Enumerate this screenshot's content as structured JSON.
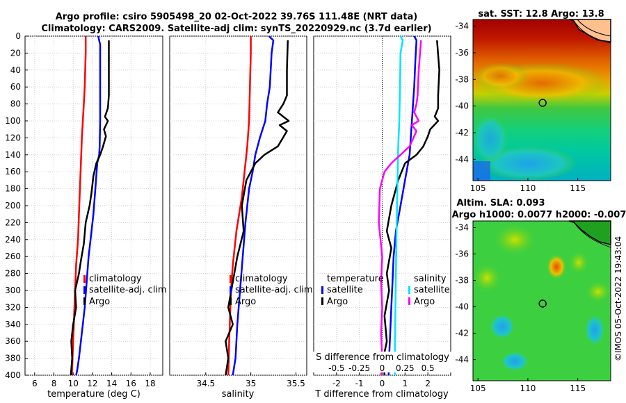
{
  "title_line1": "Argo profile: csiro 5905498_20 02-Oct-2022 39.76S 111.48E (NRT data)",
  "title_line2": "Climatology: CARS2009. Satellite-adj clim: synTS_20220929.nc (3.7d earlier)",
  "colors": {
    "climatology": "#ff0000",
    "satellite": "#0000ff",
    "argo": "#000000",
    "sat_salinity": "#00e5ff",
    "argo_salinity": "#ff00ff"
  },
  "chart_data": [
    {
      "type": "line",
      "xlabel": "temperature (deg C)",
      "xlim": [
        5,
        19.3
      ],
      "xticks": [
        "6",
        "8",
        "10",
        "12",
        "14",
        "16",
        "18"
      ],
      "xtick_values": [
        6,
        8,
        10,
        12,
        14,
        16,
        18
      ],
      "ylim": [
        0,
        400
      ],
      "yticks": [
        "0",
        "20",
        "40",
        "60",
        "80",
        "100",
        "120",
        "140",
        "160",
        "180",
        "200",
        "220",
        "240",
        "260",
        "280",
        "300",
        "320",
        "340",
        "360",
        "380",
        "400"
      ],
      "legend": [
        "climatology",
        "satellite-adj. clim",
        "Argo"
      ],
      "series": [
        {
          "name": "climatology",
          "color": "#ff0000",
          "x": [
            11.3,
            11.3,
            11.25,
            11.2,
            11.1,
            11.0,
            10.9,
            10.8,
            10.7,
            10.6,
            10.5,
            10.3,
            10.2,
            10.1,
            10.0,
            9.9,
            9.85
          ],
          "y": [
            0,
            20,
            40,
            60,
            80,
            100,
            120,
            150,
            180,
            210,
            240,
            270,
            300,
            330,
            360,
            390,
            400
          ]
        },
        {
          "name": "satellite-adj. clim",
          "color": "#0000ff",
          "x": [
            12.6,
            12.8,
            12.8,
            12.8,
            12.8,
            12.75,
            12.7,
            12.5,
            12.3,
            12.1,
            11.8,
            11.6,
            11.4,
            11.2,
            11.0,
            10.8,
            10.6,
            10.4,
            10.3
          ],
          "y": [
            0,
            10,
            40,
            80,
            100,
            130,
            140,
            150,
            180,
            210,
            240,
            260,
            290,
            320,
            340,
            360,
            380,
            395,
            400
          ]
        },
        {
          "name": "Argo",
          "color": "#000000",
          "x": [
            13.7,
            13.7,
            13.7,
            13.6,
            13.3,
            13.6,
            13.2,
            13.4,
            13.1,
            12.8,
            12.4,
            12.1,
            11.9,
            11.7,
            11.3,
            11.1,
            10.8,
            10.6,
            10.2,
            10.3,
            10.0,
            9.8,
            9.9,
            9.75
          ],
          "y": [
            5,
            40,
            70,
            85,
            95,
            100,
            110,
            118,
            130,
            140,
            150,
            165,
            185,
            200,
            220,
            245,
            265,
            280,
            300,
            320,
            340,
            360,
            380,
            400
          ]
        }
      ]
    },
    {
      "type": "line",
      "xlabel": "salinity",
      "xlim": [
        34.1,
        35.62
      ],
      "xticks": [
        "34.5",
        "35",
        "35.5"
      ],
      "xtick_values": [
        34.5,
        35,
        35.5
      ],
      "ylim": [
        0,
        400
      ],
      "legend": [
        "climatology",
        "satellite-adj. clim",
        "Argo"
      ],
      "series": [
        {
          "name": "climatology",
          "color": "#ff0000",
          "x": [
            35.0,
            35.0,
            34.99,
            34.98,
            34.96,
            34.94,
            34.92,
            34.9,
            34.87,
            34.84,
            34.82,
            34.8,
            34.78,
            34.77,
            34.76,
            34.75
          ],
          "y": [
            0,
            20,
            60,
            100,
            130,
            150,
            170,
            190,
            210,
            230,
            250,
            270,
            300,
            330,
            360,
            400
          ]
        },
        {
          "name": "satellite-adj. clim",
          "color": "#0000ff",
          "x": [
            35.2,
            35.25,
            35.23,
            35.22,
            35.21,
            35.18,
            35.16,
            35.1,
            35.05,
            35.02,
            34.98,
            34.94,
            34.91,
            34.88,
            34.85,
            34.83,
            34.8
          ],
          "y": [
            0,
            5,
            20,
            40,
            60,
            80,
            100,
            120,
            140,
            160,
            180,
            220,
            260,
            300,
            340,
            380,
            400
          ]
        },
        {
          "name": "Argo",
          "color": "#000000",
          "x": [
            35.41,
            35.4,
            35.4,
            35.36,
            35.3,
            35.42,
            35.32,
            35.4,
            35.3,
            35.15,
            35.05,
            34.95,
            34.9,
            34.92,
            34.85,
            34.8,
            34.75,
            34.8,
            34.72,
            34.75,
            34.72
          ],
          "y": [
            5,
            40,
            70,
            80,
            90,
            100,
            105,
            112,
            130,
            140,
            150,
            170,
            200,
            230,
            260,
            290,
            320,
            340,
            360,
            380,
            400
          ]
        }
      ]
    },
    {
      "type": "line",
      "xlabel": "T difference from climatology",
      "xlim": [
        -3,
        3
      ],
      "xticks": [
        "-2",
        "-1",
        "0",
        "1",
        "2"
      ],
      "xtick_values": [
        -2,
        -1,
        0,
        1,
        2
      ],
      "top_label": "S difference from climatology",
      "s_ticks": [
        "-0.5",
        "-0.25",
        "0",
        "0.25",
        "0.5"
      ],
      "ylim": [
        0,
        400
      ],
      "legend_left_title": "temperature",
      "legend_left": [
        "satellite",
        "Argo"
      ],
      "legend_right_title": "salinity",
      "legend_right": [
        "satellite",
        "Argo"
      ],
      "series": [
        {
          "name": "T satellite",
          "color": "#0000ff",
          "x": [
            1.4,
            1.5,
            1.45,
            1.4,
            1.3,
            1.2,
            1.0,
            0.8,
            0.6,
            0.5,
            0.45,
            0.4,
            0.35,
            0.3,
            0.28
          ],
          "y": [
            0,
            5,
            30,
            60,
            100,
            140,
            170,
            200,
            230,
            260,
            290,
            320,
            350,
            380,
            400
          ]
        },
        {
          "name": "T Argo",
          "color": "#000000",
          "x": [
            2.4,
            2.5,
            2.45,
            2.45,
            2.3,
            2.45,
            2.1,
            2.0,
            1.8,
            1.5,
            1.0,
            0.7,
            0.4,
            0.2,
            0.4,
            0.2,
            0.3,
            0.1,
            0.2,
            0.05,
            0.1
          ],
          "y": [
            5,
            40,
            70,
            85,
            95,
            100,
            110,
            118,
            130,
            140,
            150,
            170,
            200,
            230,
            250,
            280,
            300,
            330,
            360,
            380,
            400
          ]
        },
        {
          "name": "S satellite",
          "color": "#00e5ff",
          "x": [
            0.8,
            0.9,
            0.8,
            0.78,
            0.75,
            0.7,
            0.68,
            0.65,
            0.62,
            0.6,
            0.58,
            0.56,
            0.55
          ],
          "y": [
            0,
            5,
            20,
            60,
            100,
            130,
            160,
            200,
            240,
            280,
            320,
            360,
            400
          ]
        },
        {
          "name": "S Argo",
          "color": "#ff00ff",
          "x": [
            1.7,
            1.6,
            1.55,
            1.5,
            1.4,
            1.6,
            1.3,
            1.5,
            1.2,
            0.8,
            0.4,
            0.1,
            -0.1,
            -0.15,
            0.0,
            -0.05,
            0.0,
            -0.05,
            0.0,
            -0.05
          ],
          "y": [
            5,
            40,
            70,
            80,
            90,
            100,
            105,
            112,
            130,
            140,
            150,
            160,
            180,
            220,
            260,
            290,
            320,
            350,
            380,
            400
          ]
        }
      ]
    },
    {
      "type": "heatmap",
      "title": "sat. SST: 12.8 Argo: 13.8",
      "xticks": [
        "105",
        "110",
        "115"
      ],
      "yticks": [
        "-34",
        "-36",
        "-38",
        "-40",
        "-42",
        "-44"
      ],
      "xlim": [
        104.5,
        118.3
      ],
      "ylim": [
        -45.6,
        -33.5
      ],
      "marker": [
        111.48,
        -39.76
      ]
    },
    {
      "type": "heatmap",
      "title": "Altim. SLA: 0.093",
      "subtitle": "Argo h1000: 0.0077 h2000: -0.007",
      "xticks": [
        "105",
        "110",
        "115"
      ],
      "yticks": [
        "-34",
        "-36",
        "-38",
        "-40",
        "-42",
        "-44"
      ],
      "xlim": [
        104.5,
        118.3
      ],
      "ylim": [
        -45.6,
        -33.5
      ],
      "marker": [
        111.48,
        -39.76
      ]
    }
  ],
  "credit": "©IMOS 05-Oct-2022 19:43:04"
}
